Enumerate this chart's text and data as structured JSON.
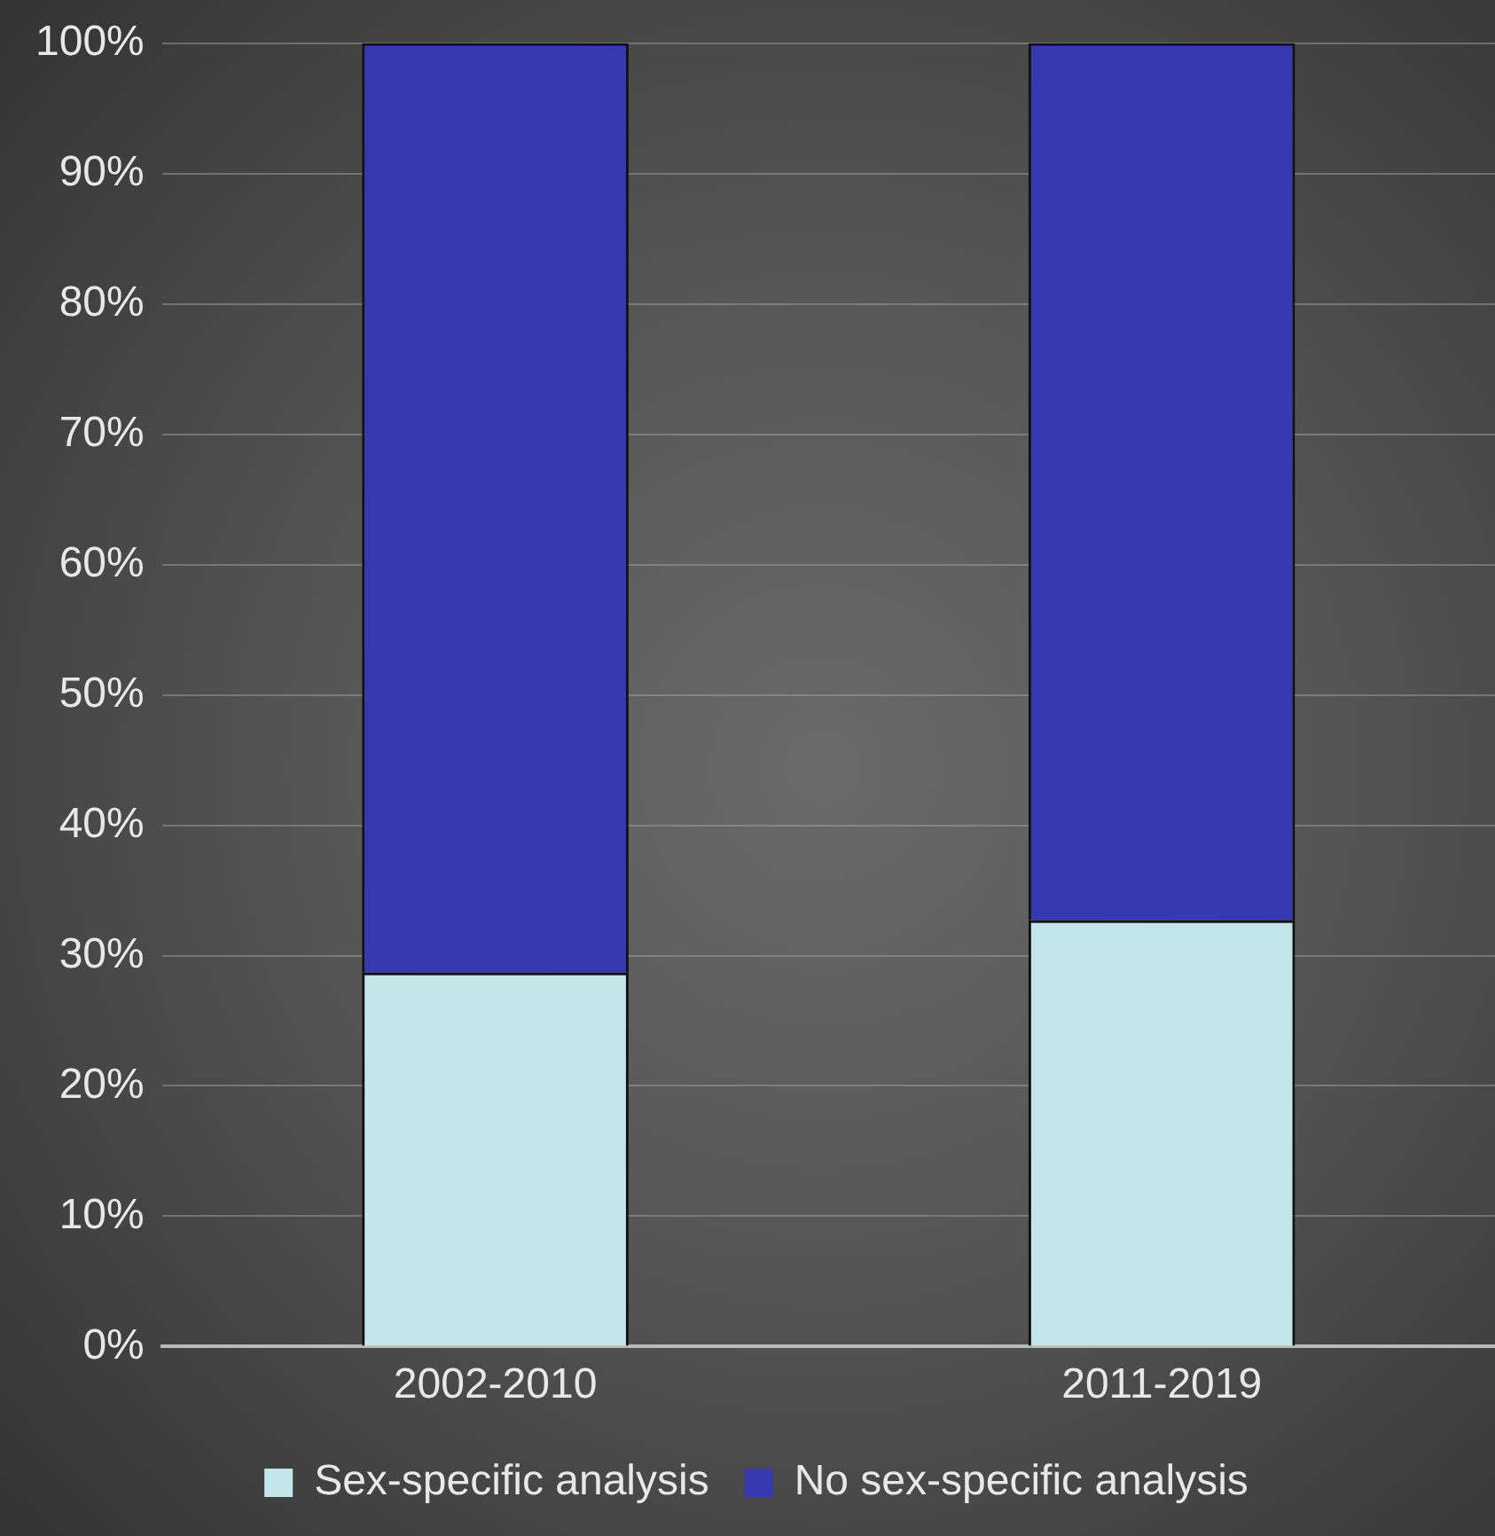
{
  "chart_data": {
    "type": "bar",
    "stacked": true,
    "categories": [
      "2002-2010",
      "2011-2019"
    ],
    "series": [
      {
        "name": "Sex-specific analysis",
        "color": "#c3e6ea",
        "values": [
          28.7,
          32.7
        ]
      },
      {
        "name": "No sex-specific analysis",
        "color": "#3439b0",
        "values": [
          71.3,
          67.3
        ]
      }
    ],
    "ylim": [
      0,
      100
    ],
    "yticks": [
      {
        "value": 0,
        "label": "0%"
      },
      {
        "value": 10,
        "label": "10%"
      },
      {
        "value": 20,
        "label": "20%"
      },
      {
        "value": 30,
        "label": "30%"
      },
      {
        "value": 40,
        "label": "40%"
      },
      {
        "value": 50,
        "label": "50%"
      },
      {
        "value": 60,
        "label": "60%"
      },
      {
        "value": 70,
        "label": "70%"
      },
      {
        "value": 80,
        "label": "80%"
      },
      {
        "value": 90,
        "label": "90%"
      },
      {
        "value": 100,
        "label": "100%"
      }
    ],
    "grid": "y",
    "legend": "bottom"
  }
}
